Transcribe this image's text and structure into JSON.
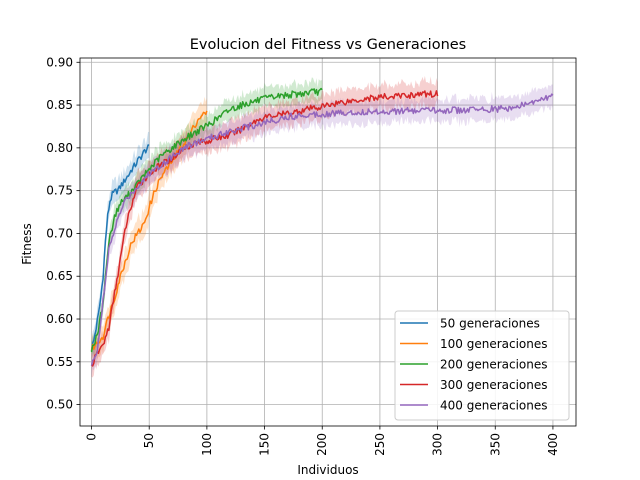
{
  "chart_data": {
    "type": "line",
    "title": "Evolucion del Fitness vs Generaciones",
    "xlabel": "Individuos",
    "ylabel": "Fitness",
    "xlim": [
      -10,
      420
    ],
    "ylim": [
      0.475,
      0.905
    ],
    "xticks": [
      0,
      50,
      100,
      150,
      200,
      250,
      300,
      350,
      400
    ],
    "yticks": [
      0.5,
      0.55,
      0.6,
      0.65,
      0.7,
      0.75,
      0.8,
      0.85,
      0.9
    ],
    "grid": true,
    "legend_position": "lower-right",
    "series": [
      {
        "name": "50 generaciones",
        "color": "#1f77b4",
        "points": [
          [
            0,
            0.565
          ],
          [
            2,
            0.575
          ],
          [
            4,
            0.59
          ],
          [
            6,
            0.605
          ],
          [
            8,
            0.625
          ],
          [
            10,
            0.65
          ],
          [
            12,
            0.69
          ],
          [
            14,
            0.72
          ],
          [
            16,
            0.738
          ],
          [
            18,
            0.745
          ],
          [
            20,
            0.748
          ],
          [
            22,
            0.75
          ],
          [
            24,
            0.752
          ],
          [
            26,
            0.757
          ],
          [
            28,
            0.76
          ],
          [
            30,
            0.765
          ],
          [
            32,
            0.768
          ],
          [
            34,
            0.773
          ],
          [
            36,
            0.777
          ],
          [
            38,
            0.78
          ],
          [
            40,
            0.785
          ],
          [
            42,
            0.788
          ],
          [
            44,
            0.792
          ],
          [
            46,
            0.796
          ],
          [
            48,
            0.799
          ],
          [
            50,
            0.8
          ]
        ],
        "band": 0.012
      },
      {
        "name": "100 generaciones",
        "color": "#ff7f0e",
        "points": [
          [
            0,
            0.565
          ],
          [
            5,
            0.572
          ],
          [
            10,
            0.58
          ],
          [
            15,
            0.605
          ],
          [
            20,
            0.625
          ],
          [
            25,
            0.65
          ],
          [
            30,
            0.67
          ],
          [
            35,
            0.69
          ],
          [
            40,
            0.7
          ],
          [
            45,
            0.71
          ],
          [
            50,
            0.73
          ],
          [
            55,
            0.75
          ],
          [
            60,
            0.765
          ],
          [
            65,
            0.775
          ],
          [
            70,
            0.785
          ],
          [
            75,
            0.795
          ],
          [
            80,
            0.805
          ],
          [
            85,
            0.815
          ],
          [
            90,
            0.828
          ],
          [
            95,
            0.838
          ],
          [
            100,
            0.84
          ]
        ],
        "band": 0.015
      },
      {
        "name": "200 generaciones",
        "color": "#2ca02c",
        "points": [
          [
            0,
            0.565
          ],
          [
            5,
            0.58
          ],
          [
            10,
            0.62
          ],
          [
            15,
            0.69
          ],
          [
            20,
            0.72
          ],
          [
            25,
            0.735
          ],
          [
            30,
            0.742
          ],
          [
            40,
            0.758
          ],
          [
            50,
            0.775
          ],
          [
            60,
            0.79
          ],
          [
            70,
            0.8
          ],
          [
            80,
            0.81
          ],
          [
            90,
            0.818
          ],
          [
            100,
            0.826
          ],
          [
            110,
            0.835
          ],
          [
            120,
            0.845
          ],
          [
            130,
            0.85
          ],
          [
            140,
            0.854
          ],
          [
            150,
            0.857
          ],
          [
            160,
            0.86
          ],
          [
            170,
            0.862
          ],
          [
            180,
            0.863
          ],
          [
            190,
            0.865
          ],
          [
            200,
            0.866
          ]
        ],
        "band": 0.012
      },
      {
        "name": "300 generaciones",
        "color": "#d62728",
        "points": [
          [
            0,
            0.545
          ],
          [
            5,
            0.56
          ],
          [
            10,
            0.57
          ],
          [
            15,
            0.59
          ],
          [
            20,
            0.63
          ],
          [
            25,
            0.67
          ],
          [
            30,
            0.71
          ],
          [
            35,
            0.735
          ],
          [
            40,
            0.755
          ],
          [
            50,
            0.77
          ],
          [
            60,
            0.78
          ],
          [
            70,
            0.788
          ],
          [
            80,
            0.8
          ],
          [
            90,
            0.806
          ],
          [
            100,
            0.808
          ],
          [
            110,
            0.812
          ],
          [
            120,
            0.815
          ],
          [
            130,
            0.822
          ],
          [
            140,
            0.83
          ],
          [
            150,
            0.836
          ],
          [
            160,
            0.838
          ],
          [
            170,
            0.84
          ],
          [
            180,
            0.843
          ],
          [
            190,
            0.846
          ],
          [
            200,
            0.848
          ],
          [
            210,
            0.852
          ],
          [
            220,
            0.854
          ],
          [
            230,
            0.856
          ],
          [
            240,
            0.858
          ],
          [
            250,
            0.859
          ],
          [
            260,
            0.86
          ],
          [
            270,
            0.861
          ],
          [
            280,
            0.862
          ],
          [
            290,
            0.863
          ],
          [
            300,
            0.863
          ]
        ],
        "band": 0.014
      },
      {
        "name": "400 generaciones",
        "color": "#9467bd",
        "points": [
          [
            0,
            0.545
          ],
          [
            5,
            0.565
          ],
          [
            10,
            0.62
          ],
          [
            15,
            0.68
          ],
          [
            20,
            0.705
          ],
          [
            25,
            0.725
          ],
          [
            30,
            0.74
          ],
          [
            40,
            0.755
          ],
          [
            50,
            0.77
          ],
          [
            60,
            0.78
          ],
          [
            70,
            0.79
          ],
          [
            80,
            0.8
          ],
          [
            90,
            0.806
          ],
          [
            100,
            0.81
          ],
          [
            110,
            0.815
          ],
          [
            120,
            0.82
          ],
          [
            130,
            0.823
          ],
          [
            140,
            0.826
          ],
          [
            150,
            0.83
          ],
          [
            160,
            0.833
          ],
          [
            170,
            0.836
          ],
          [
            180,
            0.838
          ],
          [
            190,
            0.839
          ],
          [
            200,
            0.84
          ],
          [
            220,
            0.841
          ],
          [
            240,
            0.842
          ],
          [
            260,
            0.843
          ],
          [
            280,
            0.843
          ],
          [
            300,
            0.844
          ],
          [
            320,
            0.844
          ],
          [
            340,
            0.845
          ],
          [
            360,
            0.846
          ],
          [
            370,
            0.848
          ],
          [
            380,
            0.852
          ],
          [
            390,
            0.856
          ],
          [
            400,
            0.862
          ]
        ],
        "band": 0.013
      }
    ]
  }
}
